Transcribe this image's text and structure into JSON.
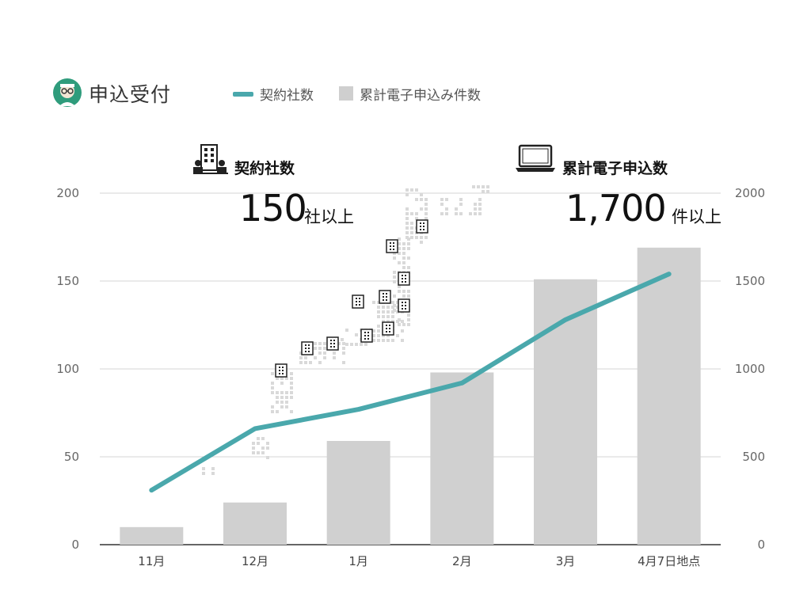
{
  "header": {
    "title": "申込受付"
  },
  "legend": {
    "line_label": "契約社数",
    "bar_label": "累計電子申込み件数"
  },
  "callouts": {
    "left": {
      "label": "契約社数",
      "number": "150",
      "unit": "社以上"
    },
    "right": {
      "label": "累計電子申込数",
      "number": "1,700",
      "unit": "件以上"
    }
  },
  "colors": {
    "line": "#4aa8ac",
    "bar": "#d0d0d0",
    "grid": "#d6d6d6",
    "axis": "#333333"
  },
  "icons": {
    "logo": "avatar-logo-icon",
    "left_callout": "building-people-icon",
    "right_callout": "laptop-icon",
    "map": "japan-dot-map"
  },
  "chart_data": {
    "type": "bar",
    "categories": [
      "11月",
      "12月",
      "1月",
      "2月",
      "3月",
      "4月7日地点"
    ],
    "series": [
      {
        "name": "累計電子申込み件数",
        "type": "bar",
        "axis": "right",
        "values": [
          100,
          240,
          590,
          980,
          1510,
          1690
        ]
      },
      {
        "name": "契約社数",
        "type": "line",
        "axis": "left",
        "values": [
          31,
          66,
          77,
          92,
          128,
          154
        ]
      }
    ],
    "left_axis": {
      "ylim": [
        0,
        200
      ],
      "ticks": [
        0,
        50,
        100,
        150,
        200
      ]
    },
    "right_axis": {
      "ylim": [
        0,
        2000
      ],
      "ticks": [
        0,
        500,
        1000,
        1500,
        2000
      ]
    },
    "grid": true,
    "legend_position": "top-left"
  }
}
